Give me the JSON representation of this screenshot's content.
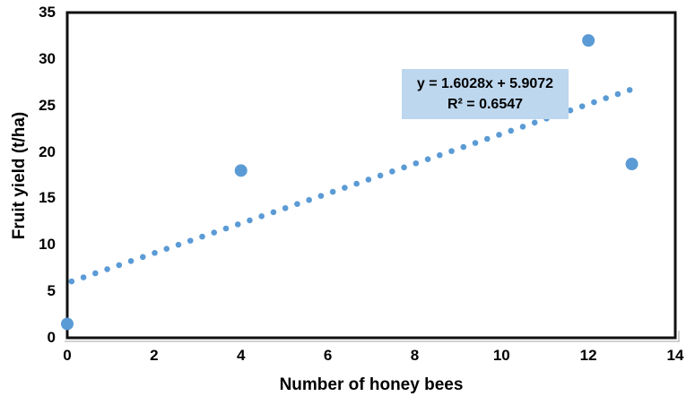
{
  "chart_data": {
    "type": "scatter",
    "title": "",
    "xlabel": "Number of honey bees",
    "ylabel": "Fruit yield (t/ha)",
    "xlim": [
      0,
      14
    ],
    "ylim": [
      0,
      35
    ],
    "x_ticks": [
      0,
      2,
      4,
      6,
      8,
      10,
      12,
      14
    ],
    "y_ticks": [
      0,
      5,
      10,
      15,
      20,
      25,
      30,
      35
    ],
    "grid": false,
    "legend": "none",
    "points": [
      {
        "x": 0,
        "y": 1.5
      },
      {
        "x": 4,
        "y": 18
      },
      {
        "x": 12,
        "y": 32
      },
      {
        "x": 13,
        "y": 18.7
      }
    ],
    "trendline": {
      "style": "dotted",
      "slope": 1.6028,
      "intercept": 5.9072,
      "x_start": 0.1,
      "x_end": 12.95
    },
    "annotation": {
      "equation": "y = 1.6028x + 5.9072",
      "r_squared": "R² = 0.6547"
    },
    "colors": {
      "marker": "#5B9BD5",
      "trendline": "#5B9BD5",
      "annotation_bg": "#BDD7EE",
      "axis": "#111111",
      "shadow": "#c3c3c3",
      "text": "#000000"
    }
  }
}
